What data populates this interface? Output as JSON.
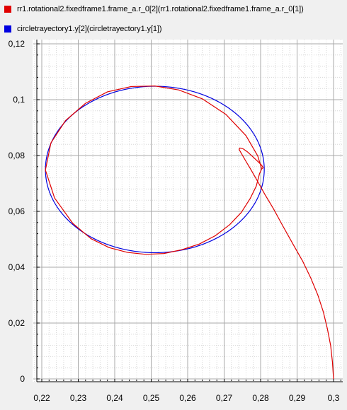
{
  "legend": [
    {
      "label": "rr1.rotational2.fixedframe1.frame_a.r_0[2](rr1.rotational2.fixedframe1.frame_a.r_0[1])",
      "color": "#e00000"
    },
    {
      "label": "circletrayectory1.y[2](circletrayectory1.y[1])",
      "color": "#0000e0"
    }
  ],
  "chart_data": {
    "type": "line",
    "title": "",
    "xlabel": "",
    "ylabel": "",
    "xlim": [
      0.218,
      0.3
    ],
    "ylim": [
      0,
      0.12
    ],
    "x_ticks": [
      0.22,
      0.23,
      0.24,
      0.25,
      0.26,
      0.27,
      0.28,
      0.29,
      0.3
    ],
    "y_ticks": [
      0,
      0.02,
      0.04,
      0.06,
      0.08,
      0.1,
      0.12
    ],
    "x_tick_labels": [
      "0,22",
      "0,23",
      "0,24",
      "0,25",
      "0,26",
      "0,27",
      "0,28",
      "0,29",
      "0,3"
    ],
    "y_tick_labels": [
      "0",
      "0,02",
      "0,04",
      "0,06",
      "0,08",
      "0,1",
      "0,12"
    ],
    "grid": true,
    "legend_position": "top",
    "series": [
      {
        "name": "rr1.rotational2.fixedframe1.frame_a.r_0[2](rr1.rotational2.fixedframe1.frame_a.r_0[1])",
        "color": "#e00000",
        "points": [
          [
            0.3,
            0.0
          ],
          [
            0.2997,
            0.006
          ],
          [
            0.2992,
            0.012
          ],
          [
            0.2983,
            0.018
          ],
          [
            0.2972,
            0.024
          ],
          [
            0.2957,
            0.03
          ],
          [
            0.2938,
            0.036
          ],
          [
            0.2916,
            0.042
          ],
          [
            0.289,
            0.048
          ],
          [
            0.286,
            0.055
          ],
          [
            0.2835,
            0.061
          ],
          [
            0.2812,
            0.066
          ],
          [
            0.2795,
            0.07
          ],
          [
            0.2782,
            0.073
          ],
          [
            0.2771,
            0.0755
          ],
          [
            0.2759,
            0.0781
          ],
          [
            0.2747,
            0.0808
          ],
          [
            0.2741,
            0.0822
          ],
          [
            0.2743,
            0.0827
          ],
          [
            0.2752,
            0.0824
          ],
          [
            0.2765,
            0.0812
          ],
          [
            0.2779,
            0.0795
          ],
          [
            0.2793,
            0.0778
          ],
          [
            0.2803,
            0.0765
          ],
          [
            0.2807,
            0.0756
          ],
          [
            0.2803,
            0.0752
          ],
          [
            0.2797,
            0.0735
          ],
          [
            0.2788,
            0.069
          ],
          [
            0.2771,
            0.0645
          ],
          [
            0.2747,
            0.0596
          ],
          [
            0.2715,
            0.0552
          ],
          [
            0.2676,
            0.0513
          ],
          [
            0.2632,
            0.0483
          ],
          [
            0.2585,
            0.0463
          ],
          [
            0.2535,
            0.0449
          ],
          [
            0.2485,
            0.0446
          ],
          [
            0.2435,
            0.0453
          ],
          [
            0.2385,
            0.047
          ],
          [
            0.2335,
            0.0502
          ],
          [
            0.2285,
            0.0557
          ],
          [
            0.2235,
            0.0648
          ],
          [
            0.221,
            0.0748
          ],
          [
            0.2225,
            0.0845
          ],
          [
            0.2265,
            0.0925
          ],
          [
            0.232,
            0.0987
          ],
          [
            0.238,
            0.1028
          ],
          [
            0.2445,
            0.1047
          ],
          [
            0.251,
            0.1049
          ],
          [
            0.2575,
            0.1035
          ],
          [
            0.264,
            0.1003
          ],
          [
            0.2705,
            0.0947
          ],
          [
            0.276,
            0.0871
          ],
          [
            0.2792,
            0.0799
          ],
          [
            0.2803,
            0.0752
          ]
        ]
      },
      {
        "name": "circletrayectory1.y[2](circletrayectory1.y[1])",
        "color": "#0000e0",
        "circle": {
          "cx": 0.251,
          "cy": 0.075,
          "rx": 0.03,
          "ry": 0.0298
        }
      }
    ]
  }
}
